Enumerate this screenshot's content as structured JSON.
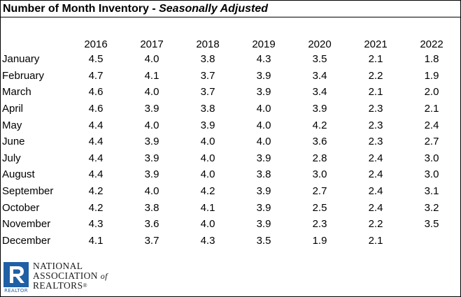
{
  "title": {
    "bold": "Number of Month Inventory - ",
    "italic": "Seasonally Adjusted"
  },
  "columns": [
    "2016",
    "2017",
    "2018",
    "2019",
    "2020",
    "2021",
    "2022"
  ],
  "rows": [
    {
      "month": "January",
      "values": [
        "4.5",
        "4.0",
        "3.8",
        "4.3",
        "3.5",
        "2.1",
        "1.8"
      ]
    },
    {
      "month": "February",
      "values": [
        "4.7",
        "4.1",
        "3.7",
        "3.9",
        "3.4",
        "2.2",
        "1.9"
      ]
    },
    {
      "month": "March",
      "values": [
        "4.6",
        "4.0",
        "3.7",
        "3.9",
        "3.4",
        "2.1",
        "2.0"
      ]
    },
    {
      "month": "April",
      "values": [
        "4.6",
        "3.9",
        "3.8",
        "4.0",
        "3.9",
        "2.3",
        "2.1"
      ]
    },
    {
      "month": "May",
      "values": [
        "4.4",
        "4.0",
        "3.9",
        "4.0",
        "4.2",
        "2.3",
        "2.4"
      ]
    },
    {
      "month": "June",
      "values": [
        "4.4",
        "3.9",
        "4.0",
        "4.0",
        "3.6",
        "2.3",
        "2.7"
      ]
    },
    {
      "month": "July",
      "values": [
        "4.4",
        "3.9",
        "4.0",
        "3.9",
        "2.8",
        "2.4",
        "3.0"
      ]
    },
    {
      "month": "August",
      "values": [
        "4.4",
        "3.9",
        "4.0",
        "3.8",
        "3.0",
        "2.4",
        "3.0"
      ]
    },
    {
      "month": "September",
      "values": [
        "4.2",
        "4.0",
        "4.2",
        "3.9",
        "2.7",
        "2.4",
        "3.1"
      ]
    },
    {
      "month": "October",
      "values": [
        "4.2",
        "3.8",
        "4.1",
        "3.9",
        "2.5",
        "2.4",
        "3.2"
      ]
    },
    {
      "month": "November",
      "values": [
        "4.3",
        "3.6",
        "4.0",
        "3.9",
        "2.3",
        "2.2",
        "3.5"
      ]
    },
    {
      "month": "December",
      "values": [
        "4.1",
        "3.7",
        "4.3",
        "3.5",
        "1.9",
        "2.1",
        ""
      ]
    }
  ],
  "logo": {
    "icon": "realtor-r-logo-icon",
    "line1": "NATIONAL",
    "line2": "ASSOCIATION",
    "of": "of",
    "line3": "REALTORS",
    "reg": "®",
    "sub": "REALTOR",
    "color": "#1f5fa6"
  }
}
